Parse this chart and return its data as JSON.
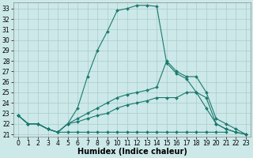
{
  "bg_color": "#cce8e8",
  "grid_color": "#aacccc",
  "line_color": "#1a7a6e",
  "marker": "D",
  "marker_size": 2,
  "lw": 0.8,
  "xlim": [
    -0.5,
    23.5
  ],
  "ylim": [
    20.8,
    33.6
  ],
  "yticks": [
    21,
    22,
    23,
    24,
    25,
    26,
    27,
    28,
    29,
    30,
    31,
    32,
    33
  ],
  "xticks": [
    0,
    1,
    2,
    3,
    4,
    5,
    6,
    7,
    8,
    9,
    10,
    11,
    12,
    13,
    14,
    15,
    16,
    17,
    18,
    19,
    20,
    21,
    22,
    23
  ],
  "xlabel": "Humidex (Indice chaleur)",
  "xlabel_fontsize": 7,
  "tick_fontsize": 5.5,
  "s1_x": [
    0,
    1,
    2,
    3,
    4,
    5,
    6,
    7,
    8,
    9,
    10,
    11,
    12,
    13,
    14,
    15,
    16,
    17,
    18,
    19,
    20,
    21,
    22,
    23
  ],
  "s1_y": [
    22.8,
    22.0,
    22.0,
    21.5,
    21.2,
    22.0,
    23.5,
    26.5,
    29.0,
    30.8,
    32.8,
    33.0,
    33.3,
    33.3,
    33.2,
    27.8,
    26.8,
    26.3,
    25.0,
    24.5,
    22.0,
    21.5,
    21.2,
    21.0
  ],
  "s2_x": [
    0,
    1,
    2,
    3,
    4,
    5,
    6,
    7,
    8,
    9,
    10,
    11,
    12,
    13,
    14,
    15,
    16,
    17,
    18,
    19,
    20,
    21
  ],
  "s2_y": [
    22.8,
    22.0,
    22.0,
    21.5,
    21.2,
    21.2,
    21.2,
    21.2,
    21.2,
    21.2,
    21.2,
    21.2,
    21.2,
    21.2,
    21.2,
    21.2,
    21.2,
    21.2,
    21.2,
    21.2,
    21.2,
    21.2
  ],
  "s3_x": [
    0,
    1,
    2,
    3,
    4,
    5,
    6,
    7,
    8,
    9,
    10,
    11,
    12,
    13,
    14,
    15,
    16,
    17,
    18,
    19,
    20,
    21,
    22,
    23
  ],
  "s3_y": [
    22.8,
    22.0,
    22.0,
    21.5,
    21.2,
    22.0,
    22.2,
    22.5,
    22.8,
    23.0,
    23.5,
    23.8,
    24.0,
    24.2,
    24.5,
    24.5,
    24.5,
    25.0,
    25.0,
    23.5,
    22.0,
    21.5,
    21.2,
    21.0
  ],
  "s4_x": [
    0,
    1,
    2,
    3,
    4,
    5,
    6,
    7,
    8,
    9,
    10,
    11,
    12,
    13,
    14,
    15,
    16,
    17,
    18,
    19,
    20,
    21,
    22,
    23
  ],
  "s4_y": [
    22.8,
    22.0,
    22.0,
    21.5,
    21.2,
    22.0,
    22.5,
    23.0,
    23.5,
    24.0,
    24.5,
    24.8,
    25.0,
    25.2,
    25.5,
    28.0,
    27.0,
    26.5,
    26.5,
    25.0,
    22.5,
    22.0,
    21.5,
    21.0
  ]
}
